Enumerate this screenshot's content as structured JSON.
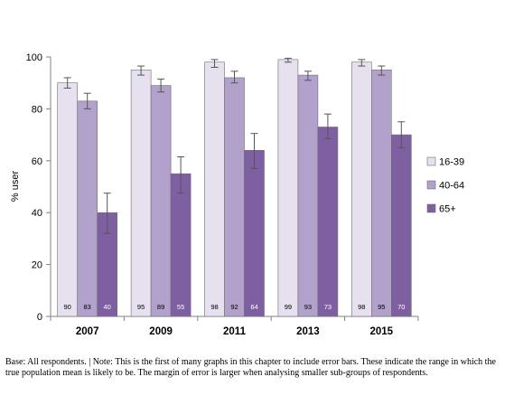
{
  "chart_data": {
    "type": "bar",
    "categories": [
      "2007",
      "2009",
      "2011",
      "2013",
      "2015"
    ],
    "ylabel": "% user",
    "ylim": [
      0,
      100
    ],
    "yticks": [
      "0",
      "20",
      "40",
      "60",
      "80",
      "100"
    ],
    "legend_position": "right",
    "series": [
      {
        "name": "16-39",
        "color": "#e6e0ef",
        "values": [
          90,
          95,
          98,
          99,
          98
        ],
        "err_low": [
          88,
          93,
          96,
          98,
          96.5
        ],
        "err_high": [
          92,
          96.5,
          99,
          99.5,
          99
        ]
      },
      {
        "name": "40-64",
        "color": "#b1a1cb",
        "values": [
          83,
          89,
          92,
          93,
          95
        ],
        "err_low": [
          80,
          86.5,
          90,
          91,
          93
        ],
        "err_high": [
          86,
          91.5,
          94.5,
          94.5,
          96.5
        ]
      },
      {
        "name": "65+",
        "color": "#7e60a2",
        "values": [
          40,
          55,
          64,
          73,
          70
        ],
        "err_low": [
          32,
          47.5,
          57,
          68.5,
          65
        ],
        "err_high": [
          47.5,
          61.5,
          70.5,
          78,
          75
        ]
      }
    ],
    "error_bars": true,
    "data_labels": true
  },
  "note": "Base: All respondents. | Note: This is the first of many graphs in this chapter to include error bars. These indicate the range in which the true population mean is likely to be. The margin of error is larger when analysing smaller sub-groups of respondents."
}
